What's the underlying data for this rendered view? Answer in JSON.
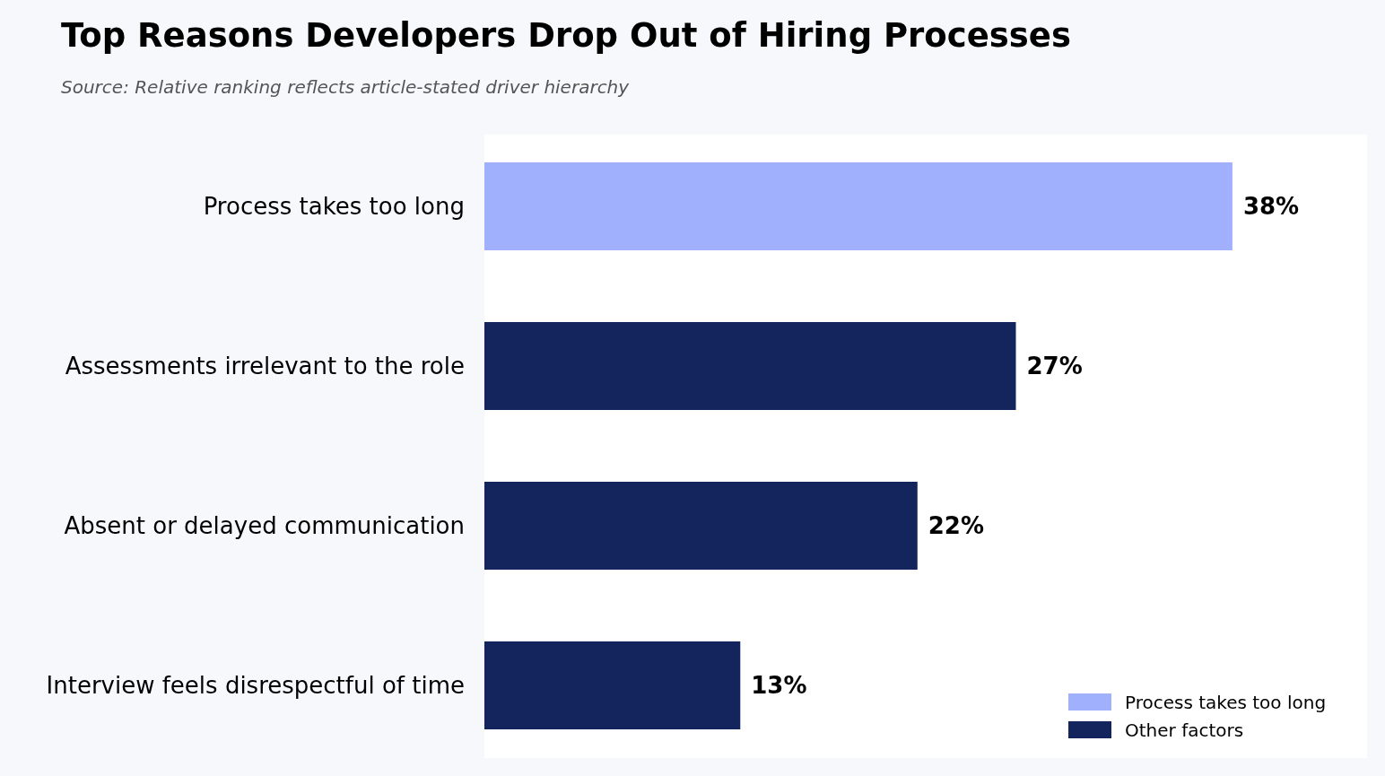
{
  "chart_data": {
    "type": "bar",
    "orientation": "horizontal",
    "title": "Top Reasons Developers Drop Out of Hiring Processes",
    "subtitle": "Source: Relative ranking reflects article-stated driver hierarchy",
    "categories": [
      "Process takes too long",
      "Assessments irrelevant to the role",
      "Absent or delayed communication",
      "Interview feels disrespectful of time"
    ],
    "series": [
      {
        "name": "Process takes too long",
        "color": "#a0b0fc",
        "values": [
          38,
          null,
          null,
          null
        ],
        "value_labels": [
          "38%",
          null,
          null,
          null
        ]
      },
      {
        "name": "Other factors",
        "color": "#14245c",
        "values": [
          null,
          27,
          22,
          13
        ],
        "value_labels": [
          null,
          "27%",
          "22%",
          "13%"
        ]
      }
    ],
    "legend": "bottom right",
    "tick_labels": "y"
  }
}
